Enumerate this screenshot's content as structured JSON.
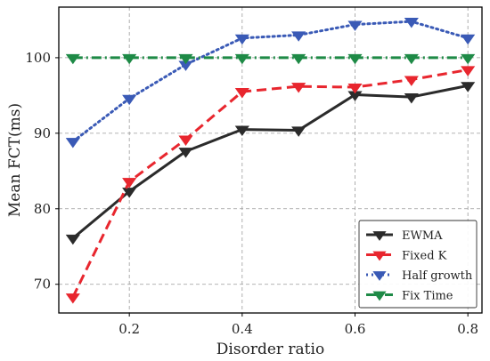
{
  "chart_data": {
    "type": "line",
    "xlabel": "Disorder ratio",
    "ylabel": "Mean FCT(ms)",
    "x": [
      0.1,
      0.2,
      0.3,
      0.4,
      0.5,
      0.6,
      0.7,
      0.8
    ],
    "xlim": [
      0.075,
      0.825
    ],
    "ylim": [
      66.2,
      106.7
    ],
    "xticks": [
      0.2,
      0.4,
      0.6,
      0.8
    ],
    "xtick_labels": [
      "0.2",
      "0.4",
      "0.6",
      "0.8"
    ],
    "yticks": [
      70,
      80,
      90,
      100
    ],
    "ytick_labels": [
      "70",
      "80",
      "90",
      "100"
    ],
    "grid": true,
    "legend_position": "lower-right",
    "series": [
      {
        "name": "EWMA",
        "color": "#2b2b2b",
        "line_style": "solid",
        "marker": "down-triangle",
        "values": [
          76.1,
          82.3,
          87.6,
          90.5,
          90.4,
          95.1,
          94.8,
          96.3
        ]
      },
      {
        "name": "Fixed K",
        "color": "#e8262e",
        "line_style": "dashed",
        "marker": "down-triangle",
        "values": [
          68.3,
          83.6,
          89.2,
          95.5,
          96.2,
          96.1,
          97.1,
          98.4
        ]
      },
      {
        "name": "Half growth",
        "color": "#3a5ab6",
        "line_style": "dotted",
        "marker": "down-triangle",
        "values": [
          88.9,
          94.6,
          99.1,
          102.6,
          103.0,
          104.4,
          104.8,
          102.6
        ]
      },
      {
        "name": "Fix Time",
        "color": "#1e8a46",
        "line_style": "dashdot",
        "marker": "down-triangle",
        "values": [
          100.0,
          100.0,
          100.0,
          100.0,
          100.0,
          100.0,
          100.0,
          100.0
        ]
      }
    ]
  }
}
